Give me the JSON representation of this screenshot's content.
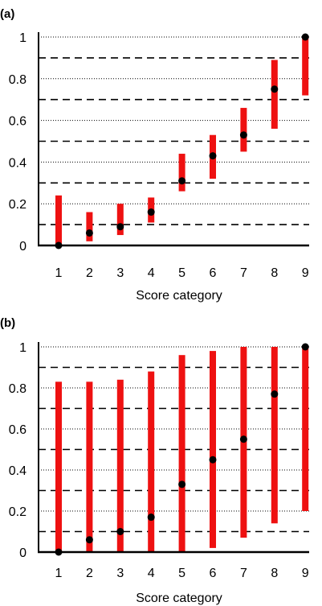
{
  "chart_data": [
    {
      "panel_label": "(a)",
      "type": "scatter",
      "xlabel": "Score category",
      "ylabel": "",
      "categories": [
        "1",
        "2",
        "3",
        "4",
        "5",
        "6",
        "7",
        "8",
        "9"
      ],
      "yticks": [
        "0",
        "0.2",
        "0.4",
        "0.6",
        "0.8",
        "1"
      ],
      "ylim": [
        0,
        1
      ],
      "points": [
        0.0,
        0.06,
        0.09,
        0.16,
        0.31,
        0.43,
        0.53,
        0.75,
        1.0
      ],
      "intervals": [
        [
          0.0,
          0.24
        ],
        [
          0.02,
          0.16
        ],
        [
          0.05,
          0.2
        ],
        [
          0.11,
          0.23
        ],
        [
          0.26,
          0.44
        ],
        [
          0.32,
          0.53
        ],
        [
          0.45,
          0.66
        ],
        [
          0.56,
          0.89
        ],
        [
          0.72,
          1.0
        ]
      ],
      "dashed_lines": [
        0.1,
        0.3,
        0.5,
        0.7,
        0.9
      ],
      "dotted_lines": [
        0.2,
        0.4,
        0.6,
        0.8,
        1.0
      ],
      "colors": {
        "interval": "#ee1111",
        "point": "#000000"
      }
    },
    {
      "panel_label": "(b)",
      "type": "scatter",
      "xlabel": "Score category",
      "ylabel": "",
      "categories": [
        "1",
        "2",
        "3",
        "4",
        "5",
        "6",
        "7",
        "8",
        "9"
      ],
      "yticks": [
        "0",
        "0.2",
        "0.4",
        "0.6",
        "0.8",
        "1"
      ],
      "ylim": [
        0,
        1
      ],
      "points": [
        0.0,
        0.06,
        0.1,
        0.17,
        0.33,
        0.45,
        0.55,
        0.77,
        1.0
      ],
      "intervals": [
        [
          0.0,
          0.83
        ],
        [
          0.0,
          0.83
        ],
        [
          0.0,
          0.84
        ],
        [
          0.0,
          0.88
        ],
        [
          0.0,
          0.96
        ],
        [
          0.02,
          0.98
        ],
        [
          0.07,
          1.0
        ],
        [
          0.14,
          1.0
        ],
        [
          0.2,
          1.0
        ]
      ],
      "dashed_lines": [
        0.1,
        0.3,
        0.5,
        0.7,
        0.9
      ],
      "dotted_lines": [
        0.2,
        0.4,
        0.6,
        0.8,
        1.0
      ],
      "colors": {
        "interval": "#ee1111",
        "point": "#000000"
      }
    }
  ]
}
